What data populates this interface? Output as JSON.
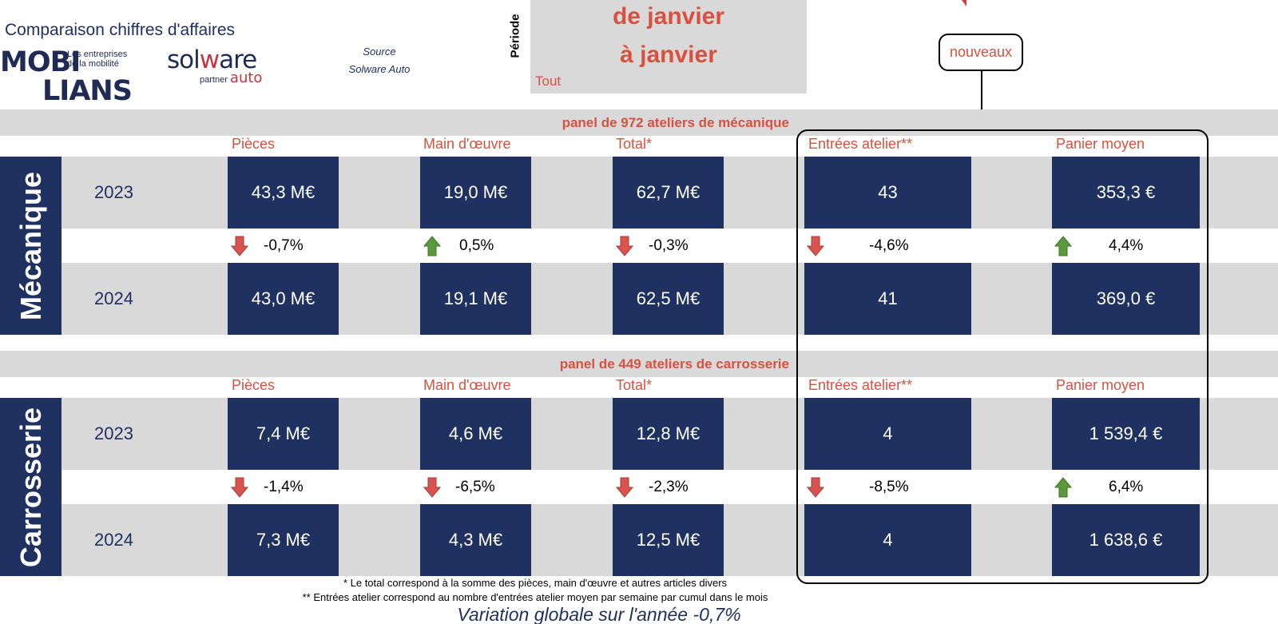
{
  "header": {
    "title": "Comparaison chiffres d'affaires",
    "logo_mobilians": {
      "line1": "MOBI",
      "line2": "LIANS",
      "tagline1": "Les entreprises",
      "tagline2": "de la mobilité"
    },
    "logo_solware": {
      "word_a": "sol",
      "word_b": "w",
      "word_c": "are",
      "partner": "partner",
      "auto": "auto"
    },
    "source_label": "Source",
    "source_value": "Solware Auto",
    "periode_label": "Période",
    "period_line1": "de janvier",
    "period_line2": "à janvier",
    "filter_value": "Tout"
  },
  "callout": {
    "label": "nouveaux"
  },
  "columns": [
    "Pièces",
    "Main d'œuvre",
    "Total*",
    "Entrées atelier**",
    "Panier moyen"
  ],
  "sections": [
    {
      "name": "Mécanique",
      "panel": "panel de 972 ateliers de mécanique",
      "year1": "2023",
      "year2": "2024",
      "row1": [
        "43,3 M€",
        "19,0 M€",
        "62,7 M€",
        "43",
        "353,3 €"
      ],
      "variations": [
        {
          "value": "-0,7%",
          "direction": "down"
        },
        {
          "value": "0,5%",
          "direction": "up"
        },
        {
          "value": "-0,3%",
          "direction": "down"
        },
        {
          "value": "-4,6%",
          "direction": "down"
        },
        {
          "value": "4,4%",
          "direction": "up"
        }
      ],
      "row2": [
        "43,0 M€",
        "19,1 M€",
        "62,5 M€",
        "41",
        "369,0 €"
      ]
    },
    {
      "name": "Carrosserie",
      "panel": "panel de 449 ateliers de carrosserie",
      "year1": "2023",
      "year2": "2024",
      "row1": [
        "7,4 M€",
        "4,6 M€",
        "12,8 M€",
        "4",
        "1 539,4 €"
      ],
      "variations": [
        {
          "value": "-1,4%",
          "direction": "down"
        },
        {
          "value": "-6,5%",
          "direction": "down"
        },
        {
          "value": "-2,3%",
          "direction": "down"
        },
        {
          "value": "-8,5%",
          "direction": "down"
        },
        {
          "value": "6,4%",
          "direction": "up"
        }
      ],
      "row2": [
        "7,3 M€",
        "4,3 M€",
        "12,5 M€",
        "4",
        "1 638,6 €"
      ]
    }
  ],
  "footnotes": {
    "note1": "* Le total correspond à la somme des pièces, main d'œuvre et autres articles divers",
    "note2": "** Entrées atelier correspond au nombre d'entrées atelier moyen par semaine par cumul dans le mois",
    "global": "Variation globale sur l'année -0,7%"
  },
  "colors": {
    "navy": "#1f3160",
    "accent": "#d9513e",
    "band": "#d9d9d9",
    "up": "#5a9a3c",
    "down": "#d9534f"
  }
}
